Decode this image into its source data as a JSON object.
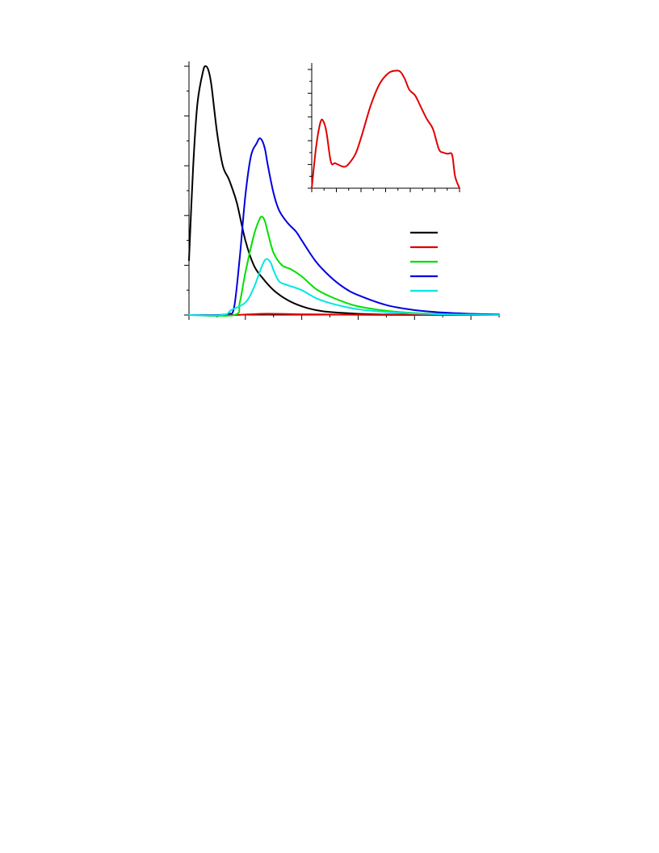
{
  "chart_data": [
    {
      "type": "line",
      "title": "",
      "xlabel": "",
      "ylabel": "",
      "xlim": [
        0,
        11
      ],
      "ylim": [
        0,
        1
      ],
      "grid": false,
      "legend": {
        "placement": "right",
        "entries": [
          {
            "name": "",
            "color": "#000000"
          },
          {
            "name": "",
            "color": "#e00000"
          },
          {
            "name": "",
            "color": "#00e000"
          },
          {
            "name": "",
            "color": "#0000e0"
          },
          {
            "name": "",
            "color": "#00e6e6"
          }
        ]
      },
      "series": [
        {
          "name": "",
          "color": "#000000",
          "x": [
            0,
            0.15,
            0.3,
            0.5,
            0.6,
            0.7,
            0.8,
            1.0,
            1.2,
            1.4,
            1.5,
            1.7,
            2.0,
            2.3,
            2.6,
            3.0,
            3.5,
            4.0,
            4.5,
            5.0,
            6.0,
            7.0,
            8.0,
            9.0,
            11.0
          ],
          "y": [
            0.22,
            0.6,
            0.85,
            0.98,
            1.0,
            0.98,
            0.92,
            0.73,
            0.6,
            0.55,
            0.52,
            0.45,
            0.3,
            0.2,
            0.15,
            0.1,
            0.06,
            0.035,
            0.02,
            0.012,
            0.005,
            0.002,
            0.001,
            0.0,
            0.0
          ]
        },
        {
          "name": "",
          "color": "#e00000",
          "x": [
            0,
            1.5,
            2.0,
            2.4,
            2.6,
            3.0,
            3.5,
            4.0,
            5.0,
            6.0,
            8.0,
            11.0
          ],
          "y": [
            0.0,
            0.0,
            0.002,
            0.004,
            0.005,
            0.005,
            0.004,
            0.003,
            0.002,
            0.001,
            0.0,
            0.0
          ]
        },
        {
          "name": "",
          "color": "#00e000",
          "x": [
            0,
            1.6,
            1.8,
            2.0,
            2.3,
            2.5,
            2.6,
            2.7,
            2.8,
            3.0,
            3.3,
            3.6,
            4.0,
            4.5,
            5.0,
            5.5,
            6.0,
            7.0,
            8.0,
            9.0,
            11.0
          ],
          "y": [
            0.0,
            0.0,
            0.05,
            0.17,
            0.32,
            0.385,
            0.395,
            0.375,
            0.33,
            0.25,
            0.2,
            0.185,
            0.155,
            0.105,
            0.075,
            0.052,
            0.035,
            0.017,
            0.008,
            0.004,
            0.0
          ]
        },
        {
          "name": "",
          "color": "#0000e0",
          "x": [
            0,
            1.0,
            1.4,
            1.6,
            1.8,
            2.0,
            2.2,
            2.4,
            2.5,
            2.6,
            2.7,
            2.8,
            3.0,
            3.2,
            3.5,
            3.8,
            4.0,
            4.5,
            5.0,
            5.5,
            6.0,
            7.0,
            8.0,
            9.0,
            10.0,
            11.0
          ],
          "y": [
            0.0,
            0.0,
            0.005,
            0.03,
            0.23,
            0.48,
            0.64,
            0.69,
            0.71,
            0.7,
            0.665,
            0.6,
            0.49,
            0.42,
            0.37,
            0.335,
            0.3,
            0.215,
            0.155,
            0.11,
            0.08,
            0.04,
            0.02,
            0.01,
            0.005,
            0.002
          ]
        },
        {
          "name": "",
          "color": "#00e6e6",
          "x": [
            0,
            1.2,
            1.5,
            2.0,
            2.3,
            2.6,
            2.75,
            2.9,
            3.0,
            3.2,
            3.5,
            4.0,
            4.5,
            5.0,
            5.5,
            6.0,
            7.0,
            8.0,
            9.0,
            11.0
          ],
          "y": [
            0.0,
            0.0,
            0.02,
            0.05,
            0.11,
            0.2,
            0.225,
            0.21,
            0.18,
            0.135,
            0.12,
            0.1,
            0.068,
            0.048,
            0.034,
            0.023,
            0.012,
            0.006,
            0.003,
            0.0
          ]
        }
      ]
    },
    {
      "type": "line",
      "title": "",
      "xlabel": "",
      "ylabel": "",
      "xlim": [
        0,
        1
      ],
      "ylim": [
        0,
        1
      ],
      "grid": false,
      "series": [
        {
          "name": "",
          "color": "#e00000",
          "x": [
            0.0,
            0.03,
            0.06,
            0.08,
            0.1,
            0.13,
            0.16,
            0.22,
            0.26,
            0.3,
            0.34,
            0.4,
            0.46,
            0.52,
            0.57,
            0.6,
            0.63,
            0.66,
            0.7,
            0.74,
            0.78,
            0.82,
            0.86,
            0.89,
            0.92,
            0.95,
            0.97,
            1.0
          ],
          "y": [
            0.0,
            0.35,
            0.56,
            0.56,
            0.47,
            0.22,
            0.21,
            0.18,
            0.22,
            0.3,
            0.45,
            0.7,
            0.88,
            0.97,
            0.99,
            0.98,
            0.92,
            0.83,
            0.78,
            0.68,
            0.58,
            0.5,
            0.33,
            0.3,
            0.29,
            0.28,
            0.1,
            0.0
          ]
        }
      ]
    }
  ]
}
